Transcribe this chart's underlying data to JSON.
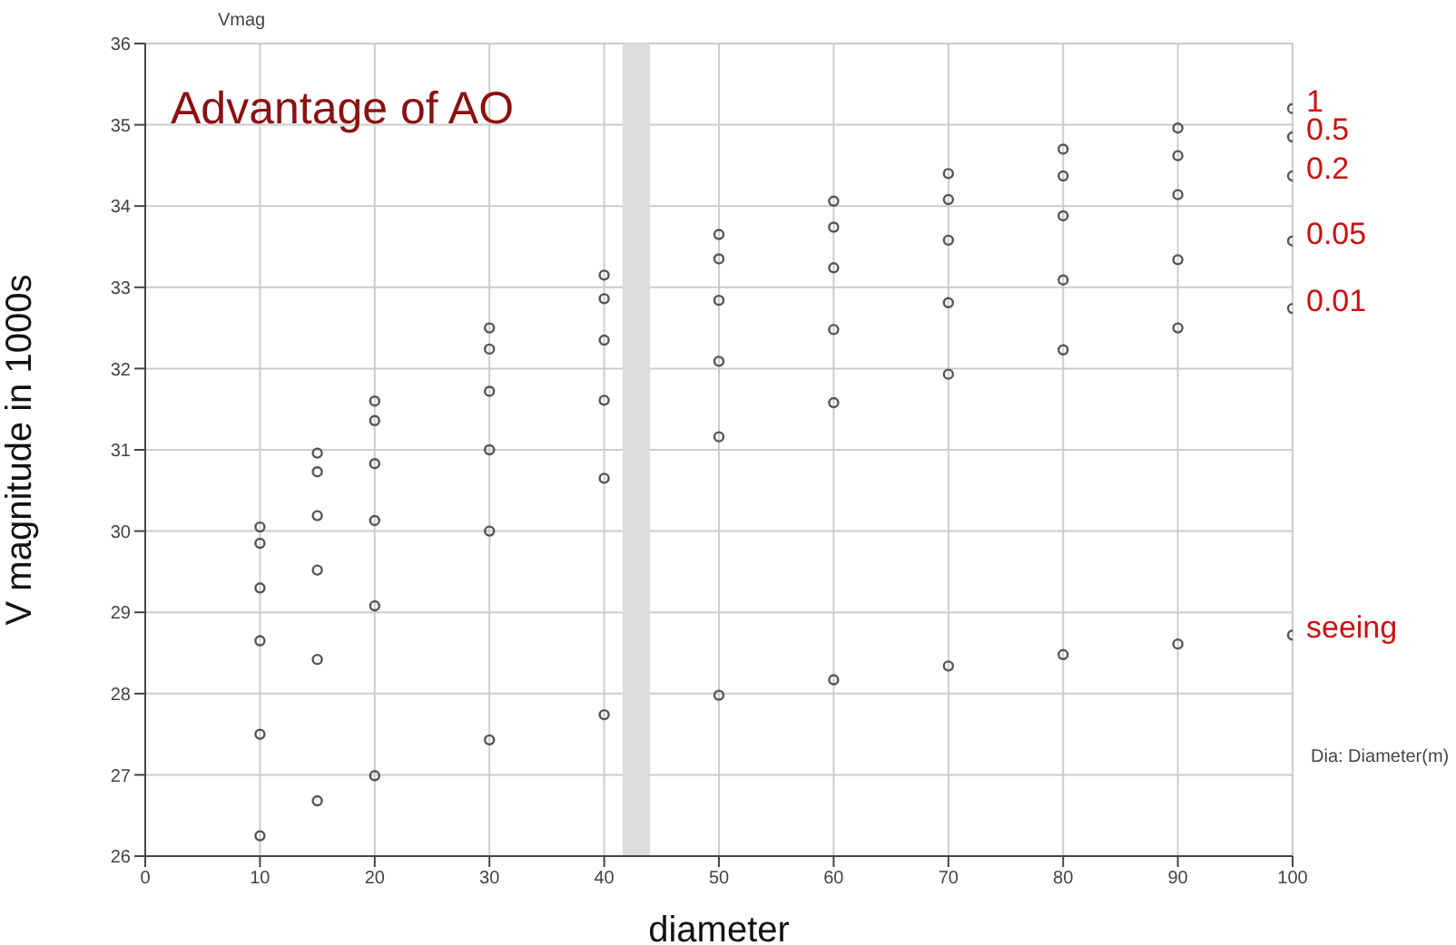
{
  "chart_data": {
    "type": "scatter",
    "title": "Advantage of AO",
    "xlabel": "diameter",
    "ylabel": "V magnitude in 1000s",
    "annotations": [
      "Vmag",
      "Dia: Diameter(m)"
    ],
    "x": [
      10,
      15,
      20,
      30,
      40,
      50,
      60,
      70,
      80,
      90,
      100
    ],
    "series": [
      {
        "name": "1",
        "color": "#555555",
        "values": [
          30.05,
          30.96,
          31.6,
          32.5,
          33.15,
          33.65,
          34.06,
          34.4,
          34.7,
          34.96,
          35.2
        ]
      },
      {
        "name": "0.5",
        "color": "#555555",
        "values": [
          29.85,
          30.73,
          31.36,
          32.24,
          32.86,
          33.35,
          33.74,
          34.08,
          34.37,
          34.62,
          34.85
        ]
      },
      {
        "name": "0.2",
        "color": "#555555",
        "values": [
          29.3,
          30.19,
          30.83,
          31.72,
          32.35,
          32.84,
          33.24,
          33.58,
          33.88,
          34.14,
          34.37
        ]
      },
      {
        "name": "0.05",
        "color": "#555555",
        "values": [
          28.65,
          29.52,
          30.13,
          31.0,
          31.61,
          32.09,
          32.48,
          32.81,
          33.09,
          33.34,
          33.57
        ]
      },
      {
        "name": "0.01",
        "color": "#555555",
        "values": [
          27.5,
          28.42,
          29.08,
          30.0,
          30.65,
          31.16,
          31.58,
          31.93,
          32.23,
          32.5,
          32.74
        ]
      },
      {
        "name": "seeing",
        "color": "#555555",
        "values": [
          26.25,
          26.68,
          26.99,
          27.43,
          27.74,
          27.98,
          28.17,
          28.34,
          28.48,
          28.61,
          28.72
        ]
      }
    ],
    "bands": [
      {
        "axis": "x",
        "from": 41.6,
        "to": 44,
        "color": "#dddddd"
      }
    ],
    "xlim": [
      0,
      100
    ],
    "xticks": [
      0,
      10,
      20,
      30,
      40,
      50,
      60,
      70,
      80,
      90,
      100
    ],
    "ylim": [
      26,
      36
    ],
    "yticks": [
      26,
      27,
      28,
      29,
      30,
      31,
      32,
      33,
      34,
      35,
      36
    ],
    "grid": true,
    "marker": "circle"
  }
}
